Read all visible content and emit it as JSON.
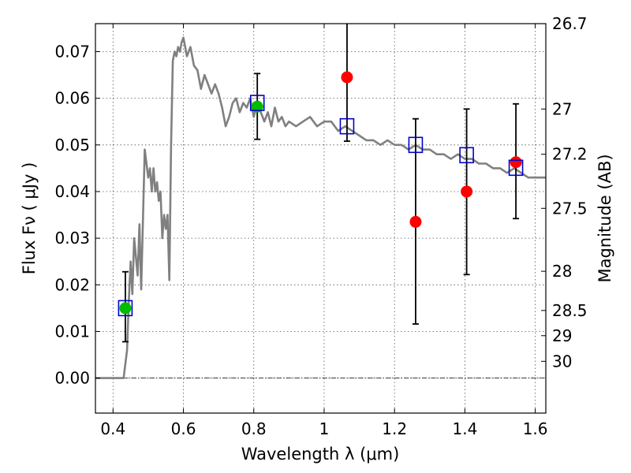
{
  "chart_data": {
    "type": "scatter",
    "xlabel": "Wavelength  λ (μm)",
    "ylabel": "Flux  Fν ( μJy )",
    "ylabel_right": "Magnitude (AB)",
    "xlim": [
      0.35,
      1.63
    ],
    "ylim": [
      -0.0075,
      0.076
    ],
    "x_ticks": [
      0.4,
      0.6,
      0.8,
      1.0,
      1.2,
      1.4,
      1.6
    ],
    "x_tick_labels": [
      "0.4",
      "0.6",
      "0.8",
      "1",
      "1.2",
      "1.4",
      "1.6"
    ],
    "y_ticks": [
      0.0,
      0.01,
      0.02,
      0.03,
      0.04,
      0.05,
      0.06,
      0.07
    ],
    "y_tick_labels": [
      "0.00",
      "0.01",
      "0.02",
      "0.03",
      "0.04",
      "0.05",
      "0.06",
      "0.07"
    ],
    "magnitude_ticks": [
      {
        "label": "26.7",
        "flux": 0.076
      },
      {
        "label": "27",
        "flux": 0.0577
      },
      {
        "label": "27.2",
        "flux": 0.048
      },
      {
        "label": "27.5",
        "flux": 0.0364
      },
      {
        "label": "28",
        "flux": 0.0229
      },
      {
        "label": "28.5",
        "flux": 0.0145
      },
      {
        "label": "29",
        "flux": 0.0091
      },
      {
        "label": "30",
        "flux": 0.0036
      }
    ],
    "grid": true,
    "colors": {
      "model": "#808080",
      "model_photometry": "#0000cc",
      "observed": "#ff0000",
      "observed_alt": "#00bb00",
      "errorbar": "#000000"
    },
    "model_spectrum": {
      "x": [
        0.35,
        0.41,
        0.42,
        0.43,
        0.44,
        0.445,
        0.45,
        0.455,
        0.46,
        0.47,
        0.475,
        0.48,
        0.49,
        0.5,
        0.505,
        0.51,
        0.515,
        0.52,
        0.525,
        0.53,
        0.535,
        0.54,
        0.545,
        0.55,
        0.555,
        0.56,
        0.565,
        0.57,
        0.575,
        0.58,
        0.585,
        0.59,
        0.595,
        0.6,
        0.605,
        0.61,
        0.62,
        0.63,
        0.64,
        0.65,
        0.66,
        0.67,
        0.68,
        0.69,
        0.7,
        0.71,
        0.72,
        0.73,
        0.74,
        0.75,
        0.76,
        0.77,
        0.78,
        0.79,
        0.8,
        0.81,
        0.82,
        0.83,
        0.84,
        0.85,
        0.86,
        0.87,
        0.88,
        0.89,
        0.9,
        0.92,
        0.94,
        0.96,
        0.98,
        1.0,
        1.02,
        1.04,
        1.06,
        1.08,
        1.1,
        1.12,
        1.14,
        1.16,
        1.18,
        1.2,
        1.22,
        1.24,
        1.26,
        1.28,
        1.3,
        1.32,
        1.34,
        1.36,
        1.38,
        1.4,
        1.42,
        1.44,
        1.46,
        1.48,
        1.5,
        1.52,
        1.54,
        1.56,
        1.58,
        1.6,
        1.63
      ],
      "y": [
        0.0,
        0.0,
        0.0,
        0.0,
        0.006,
        0.017,
        0.025,
        0.018,
        0.03,
        0.022,
        0.033,
        0.019,
        0.049,
        0.043,
        0.045,
        0.04,
        0.045,
        0.04,
        0.042,
        0.038,
        0.04,
        0.03,
        0.035,
        0.032,
        0.035,
        0.021,
        0.05,
        0.068,
        0.07,
        0.069,
        0.071,
        0.07,
        0.072,
        0.073,
        0.071,
        0.069,
        0.071,
        0.067,
        0.066,
        0.062,
        0.065,
        0.063,
        0.061,
        0.063,
        0.061,
        0.058,
        0.054,
        0.056,
        0.059,
        0.06,
        0.057,
        0.059,
        0.058,
        0.06,
        0.056,
        0.059,
        0.057,
        0.055,
        0.057,
        0.054,
        0.058,
        0.055,
        0.056,
        0.054,
        0.055,
        0.054,
        0.055,
        0.056,
        0.054,
        0.055,
        0.055,
        0.053,
        0.054,
        0.053,
        0.052,
        0.051,
        0.051,
        0.05,
        0.051,
        0.05,
        0.05,
        0.049,
        0.05,
        0.049,
        0.049,
        0.048,
        0.048,
        0.047,
        0.048,
        0.047,
        0.047,
        0.046,
        0.046,
        0.045,
        0.045,
        0.044,
        0.045,
        0.044,
        0.043,
        0.043,
        0.043
      ]
    },
    "model_photometry": {
      "x": [
        0.435,
        0.81,
        1.065,
        1.26,
        1.405,
        1.545
      ],
      "y": [
        0.015,
        0.059,
        0.054,
        0.05,
        0.0478,
        0.0451
      ]
    },
    "observed": [
      {
        "x": 0.435,
        "y": 0.015,
        "err_low": 0.0078,
        "err_high": 0.0228,
        "kind": "alt"
      },
      {
        "x": 0.81,
        "y": 0.0582,
        "err_low": 0.0512,
        "err_high": 0.0653,
        "kind": "alt"
      },
      {
        "x": 1.065,
        "y": 0.0645,
        "err_low": 0.0508,
        "err_high": 0.0765,
        "kind": "main"
      },
      {
        "x": 1.26,
        "y": 0.0335,
        "err_low": 0.0116,
        "err_high": 0.0556,
        "kind": "main"
      },
      {
        "x": 1.405,
        "y": 0.04,
        "err_low": 0.0222,
        "err_high": 0.0577,
        "kind": "main"
      },
      {
        "x": 1.545,
        "y": 0.0463,
        "err_low": 0.0342,
        "err_high": 0.0588,
        "kind": "main"
      }
    ]
  }
}
